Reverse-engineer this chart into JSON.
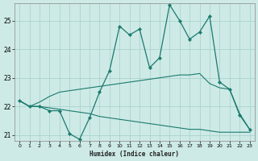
{
  "xlabel": "Humidex (Indice chaleur)",
  "background_color": "#ceeae6",
  "grid_color": "#aad4cf",
  "line_color": "#1a7a6e",
  "xlim": [
    -0.5,
    23.5
  ],
  "ylim": [
    20.8,
    25.6
  ],
  "yticks": [
    21,
    22,
    23,
    24,
    25
  ],
  "xticks": [
    0,
    1,
    2,
    3,
    4,
    5,
    6,
    7,
    8,
    9,
    10,
    11,
    12,
    13,
    14,
    15,
    16,
    17,
    18,
    19,
    20,
    21,
    22,
    23
  ],
  "line1_x": [
    0,
    1,
    2,
    3,
    4,
    5,
    6,
    7,
    8,
    9,
    10,
    11,
    12,
    13,
    14,
    15,
    16,
    17,
    18,
    19,
    20,
    21,
    22,
    23
  ],
  "line1_y": [
    22.2,
    22.0,
    22.0,
    21.85,
    21.85,
    21.05,
    20.85,
    21.6,
    22.5,
    23.25,
    24.8,
    24.5,
    24.7,
    23.35,
    23.7,
    25.55,
    25.0,
    24.35,
    24.6,
    25.15,
    22.85,
    22.6,
    21.7,
    21.2
  ],
  "line2_x": [
    0,
    1,
    2,
    3,
    4,
    5,
    6,
    7,
    8,
    9,
    10,
    11,
    12,
    13,
    14,
    15,
    16,
    17,
    18,
    19,
    20,
    21,
    22,
    23
  ],
  "line2_y": [
    22.2,
    22.0,
    22.15,
    22.35,
    22.5,
    22.55,
    22.6,
    22.65,
    22.7,
    22.75,
    22.8,
    22.85,
    22.9,
    22.95,
    23.0,
    23.05,
    23.1,
    23.1,
    23.15,
    22.8,
    22.65,
    22.6,
    21.75,
    21.2
  ],
  "line3_x": [
    0,
    1,
    2,
    3,
    4,
    5,
    6,
    7,
    8,
    9,
    10,
    11,
    12,
    13,
    14,
    15,
    16,
    17,
    18,
    19,
    20,
    21,
    22,
    23
  ],
  "line3_y": [
    22.2,
    22.0,
    22.0,
    21.95,
    21.9,
    21.85,
    21.8,
    21.75,
    21.65,
    21.6,
    21.55,
    21.5,
    21.45,
    21.4,
    21.35,
    21.3,
    21.25,
    21.2,
    21.2,
    21.15,
    21.1,
    21.1,
    21.1,
    21.1
  ]
}
